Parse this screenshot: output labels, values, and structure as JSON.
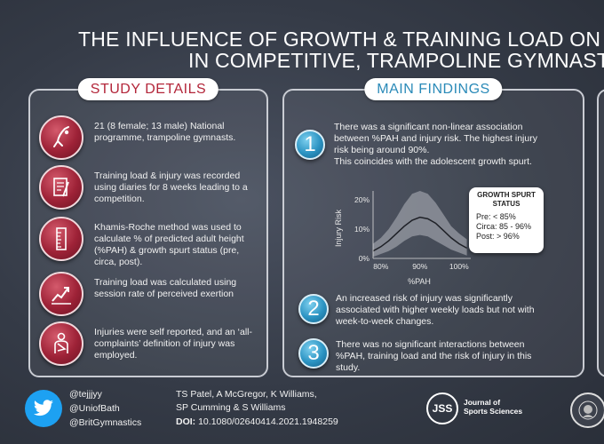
{
  "title": {
    "line1": "THE INFLUENCE OF GROWTH & TRAINING LOAD ON IN",
    "line2": "IN COMPETITIVE, TRAMPOLINE GYMNASTS"
  },
  "study_details": {
    "header": "STUDY DETAILS",
    "items": [
      {
        "icon": "gymnast-icon",
        "text": "21 (8 female; 13 male) National programme, trampoline gymnasts."
      },
      {
        "icon": "diary-icon",
        "text": "Training load & injury was recorded using diaries for 8 weeks leading to a competition."
      },
      {
        "icon": "ruler-icon",
        "text": "Khamis-Roche method was used to calculate % of predicted adult height (%PAH) & growth spurt status (pre, circa, post)."
      },
      {
        "icon": "trend-chart-icon",
        "text": "Training load was calculated using session rate of perceived exertion"
      },
      {
        "icon": "injured-person-icon",
        "text": "Injuries were self reported, and an ‘all-complaints’ definition of injury was employed."
      }
    ]
  },
  "main_findings": {
    "header": "MAIN FINDINGS",
    "findings": [
      {
        "number": "1",
        "text": "There was a significant non-linear association between %PAH and injury risk. The highest injury risk being around 90%.",
        "emphasis": "This coincides with the adolescent growth spurt."
      },
      {
        "number": "2",
        "text": "An increased risk of injury was significantly associated with higher weekly loads but not with week-to-week changes."
      },
      {
        "number": "3",
        "text": "There was no significant interactions between %PAH, training load and the risk of injury in this study."
      }
    ],
    "growth_spurt": {
      "title": "GROWTH SPURT STATUS",
      "rows": [
        "Pre: < 85%",
        "Circa: 85 - 96%",
        "Post: > 96%"
      ]
    }
  },
  "chart_data": {
    "type": "line",
    "xlabel": "%PAH",
    "ylabel": "Injury Risk",
    "x_ticks": [
      "80%",
      "90%",
      "100%"
    ],
    "y_ticks": [
      "0%",
      "10%",
      "20%"
    ],
    "xlim": [
      78,
      103
    ],
    "ylim": [
      0,
      23
    ],
    "series": [
      {
        "x": [
          78,
          80,
          82,
          84,
          86,
          88,
          90,
          92,
          94,
          96,
          98,
          100,
          102
        ],
        "values": [
          2.5,
          4.0,
          6.0,
          8.5,
          11.0,
          13.0,
          14.0,
          13.5,
          12.0,
          9.5,
          7.0,
          5.0,
          3.5
        ],
        "lower": [
          0.5,
          1.5,
          2.5,
          4.0,
          6.0,
          7.5,
          8.0,
          7.5,
          6.0,
          4.5,
          3.0,
          2.0,
          1.0
        ],
        "upper": [
          5.0,
          7.0,
          10.0,
          14.0,
          18.5,
          22.0,
          23.0,
          22.0,
          19.0,
          15.0,
          11.0,
          8.5,
          6.5
        ]
      }
    ],
    "colors": {
      "band": "#8e929b",
      "line": "#1e2026"
    }
  },
  "footer": {
    "handles": [
      "@tejjjyy",
      "@UniofBath",
      "@BritGymnastics"
    ],
    "authors_line1": "TS Patel, A McGregor, K Williams,",
    "authors_line2": "SP Cumming & S Williams",
    "doi_label": "DOI:",
    "doi": "10.1080/02640414.2021.1948259",
    "journal_logo": "JSS",
    "journal_name_line1": "Journal of",
    "journal_name_line2": "Sports Sciences"
  },
  "colors": {
    "study_accent": "#b3263a",
    "findings_accent": "#2a8ab8",
    "twitter": "#1da1f2"
  }
}
